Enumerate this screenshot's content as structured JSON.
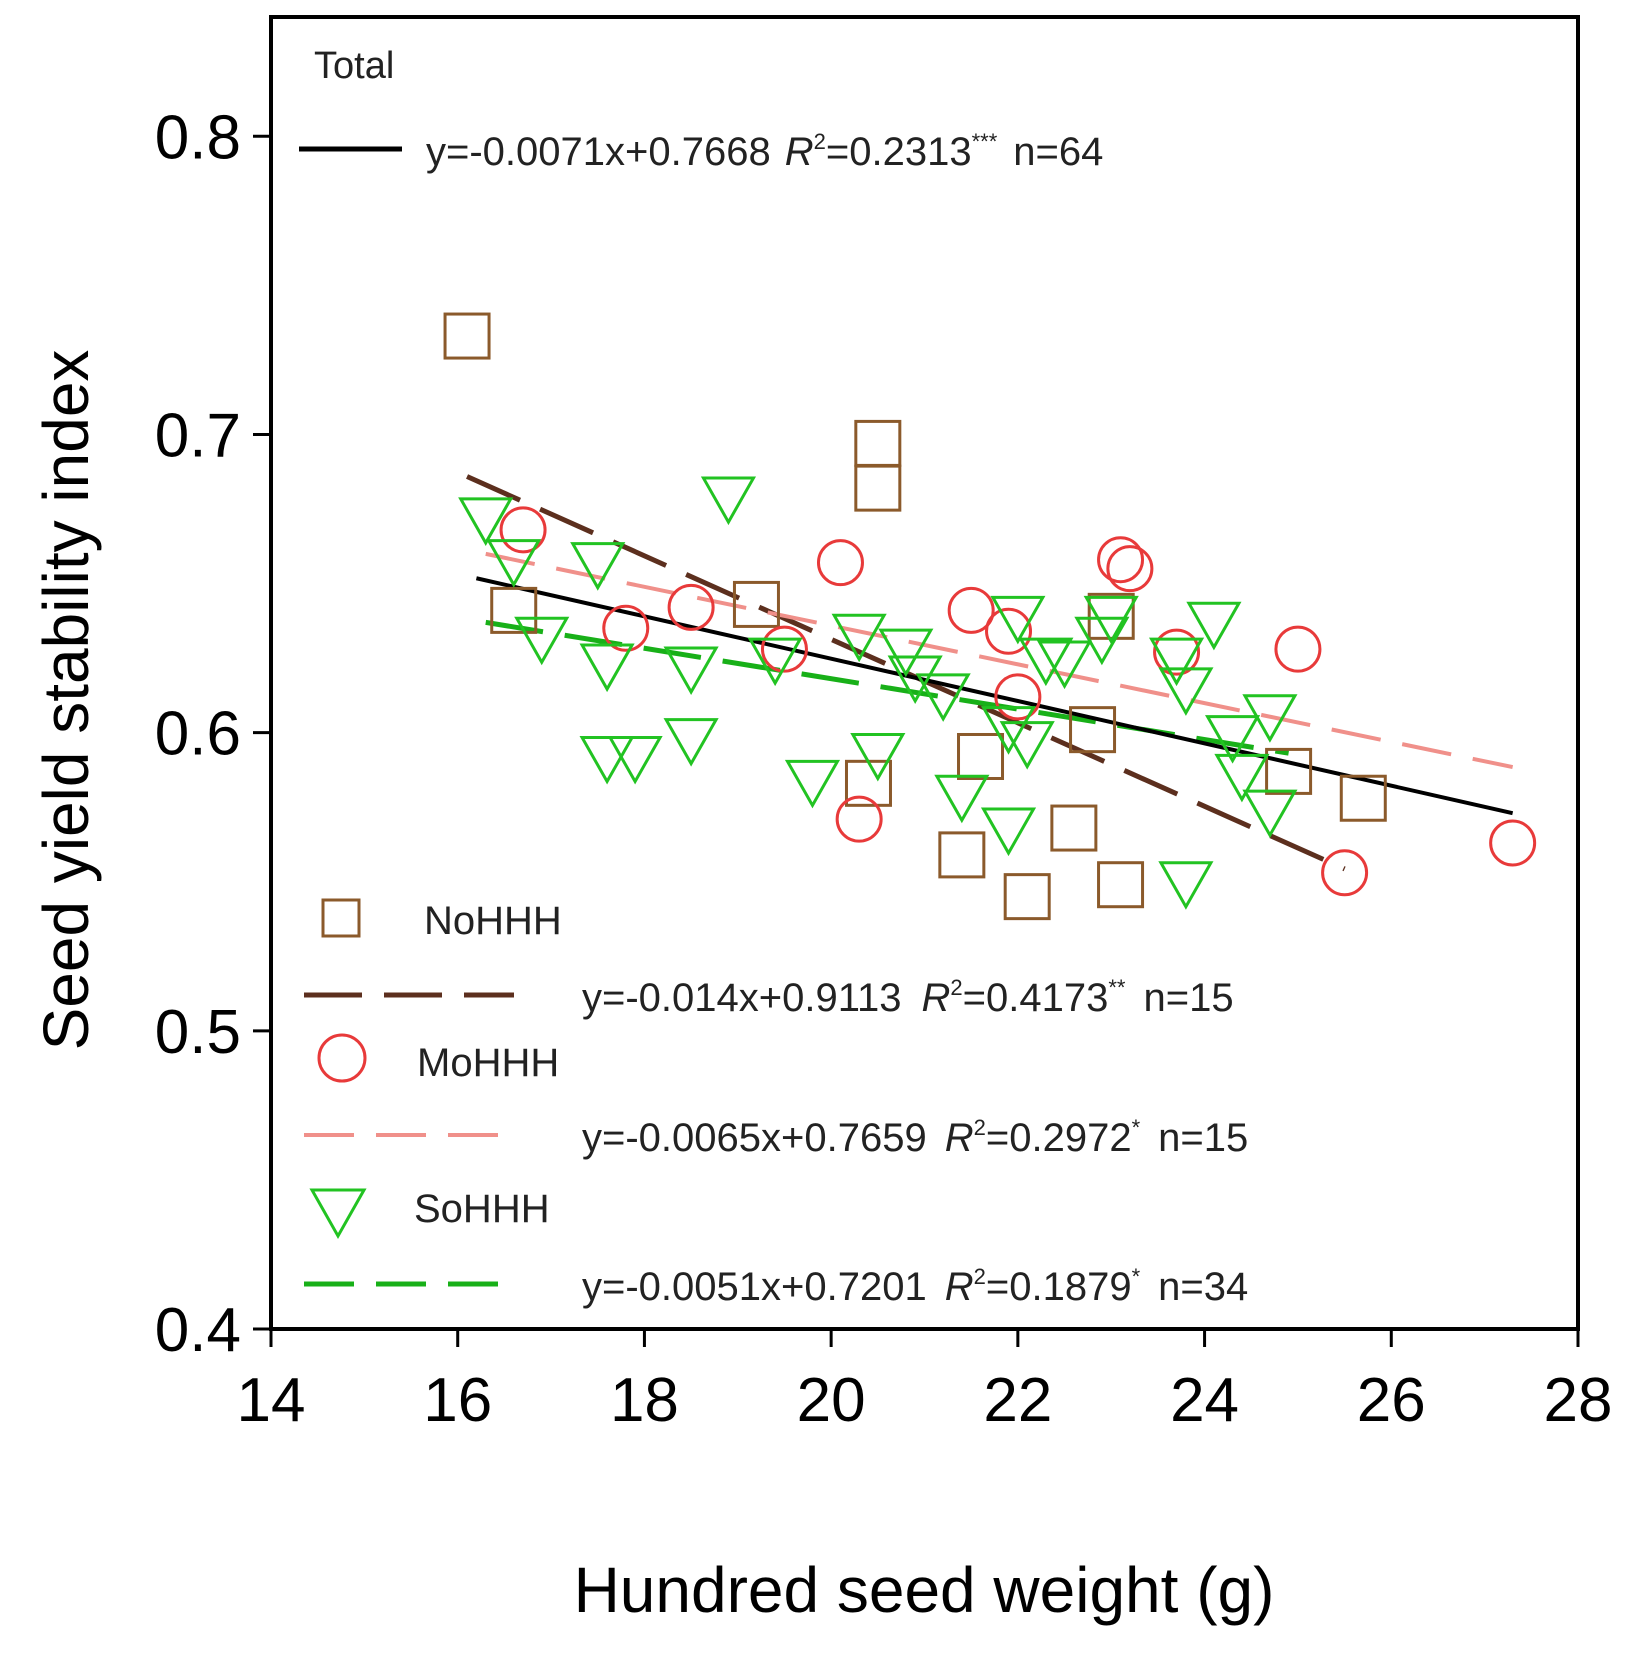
{
  "chart_data": {
    "type": "scatter",
    "xlabel": "Hundred seed weight (g)",
    "ylabel": "Seed yield stability index",
    "xlim": [
      14,
      28
    ],
    "ylim": [
      0.4,
      0.84
    ],
    "xticks": [
      "14",
      "16",
      "18",
      "20",
      "22",
      "24",
      "26",
      "28"
    ],
    "yticks": [
      "0.4",
      "0.5",
      "0.6",
      "0.7",
      "0.8"
    ],
    "total": {
      "label": "Total",
      "color": "#000000",
      "fit": {
        "slope": -0.0071,
        "intercept": 0.7668,
        "x_range": [
          16.2,
          27.3
        ]
      },
      "eq": "y=-0.0071x+0.7668",
      "r2_prefix": "R",
      "r2_value": "=0.2313",
      "sig": "***",
      "n": "n=64"
    },
    "series": [
      {
        "name": "NoHHH",
        "marker": "square",
        "color": "#8b5a2b",
        "line_color": "#5c2f1e",
        "dash": "long",
        "eq": "y=-0.014x+0.9113",
        "r2_prefix": "R",
        "r2_value": "=0.4173",
        "sig": "**",
        "n": "n=15",
        "fit": {
          "slope": -0.014,
          "intercept": 0.9113,
          "x_range": [
            16.1,
            25.5
          ]
        },
        "points": [
          [
            16.1,
            0.733
          ],
          [
            16.6,
            0.641
          ],
          [
            19.2,
            0.643
          ],
          [
            20.4,
            0.583
          ],
          [
            20.5,
            0.697
          ],
          [
            20.5,
            0.682
          ],
          [
            21.4,
            0.559
          ],
          [
            21.6,
            0.592
          ],
          [
            22.1,
            0.545
          ],
          [
            22.6,
            0.568
          ],
          [
            22.8,
            0.601
          ],
          [
            23.0,
            0.639
          ],
          [
            23.1,
            0.549
          ],
          [
            24.9,
            0.587
          ],
          [
            25.7,
            0.578
          ]
        ]
      },
      {
        "name": "MoHHH",
        "marker": "circle",
        "color": "#e83a3a",
        "line_color": "#f0908a",
        "dash": "short",
        "eq": "y=-0.0065x+0.7659",
        "r2_prefix": "R",
        "r2_value": "=0.2972",
        "sig": "*",
        "n": "n=15",
        "fit": {
          "slope": -0.0065,
          "intercept": 0.7659,
          "x_range": [
            16.3,
            27.3
          ]
        },
        "points": [
          [
            16.7,
            0.668
          ],
          [
            17.8,
            0.635
          ],
          [
            18.5,
            0.642
          ],
          [
            19.5,
            0.628
          ],
          [
            20.1,
            0.657
          ],
          [
            20.3,
            0.571
          ],
          [
            21.5,
            0.641
          ],
          [
            21.9,
            0.634
          ],
          [
            22.0,
            0.612
          ],
          [
            23.1,
            0.658
          ],
          [
            23.2,
            0.655
          ],
          [
            23.7,
            0.627
          ],
          [
            25.0,
            0.628
          ],
          [
            25.5,
            0.553
          ],
          [
            27.3,
            0.563
          ]
        ]
      },
      {
        "name": "SoHHH",
        "marker": "triangle-down",
        "color": "#22c322",
        "line_color": "#18b018",
        "dash": "long",
        "eq": "y=-0.0051x+0.7201",
        "r2_prefix": "R",
        "r2_value": "=0.1879",
        "sig": "*",
        "n": "n=34",
        "fit": {
          "slope": -0.0051,
          "intercept": 0.7201,
          "x_range": [
            16.3,
            24.9
          ]
        },
        "points": [
          [
            16.3,
            0.671
          ],
          [
            16.6,
            0.657
          ],
          [
            16.9,
            0.631
          ],
          [
            17.5,
            0.656
          ],
          [
            17.6,
            0.622
          ],
          [
            17.6,
            0.591
          ],
          [
            17.9,
            0.591
          ],
          [
            18.5,
            0.621
          ],
          [
            18.5,
            0.597
          ],
          [
            18.9,
            0.678
          ],
          [
            19.4,
            0.624
          ],
          [
            19.8,
            0.583
          ],
          [
            20.3,
            0.632
          ],
          [
            20.5,
            0.592
          ],
          [
            20.8,
            0.627
          ],
          [
            20.9,
            0.618
          ],
          [
            21.2,
            0.612
          ],
          [
            21.4,
            0.578
          ],
          [
            21.9,
            0.601
          ],
          [
            21.9,
            0.567
          ],
          [
            22.0,
            0.638
          ],
          [
            22.1,
            0.596
          ],
          [
            22.3,
            0.624
          ],
          [
            22.5,
            0.623
          ],
          [
            22.9,
            0.631
          ],
          [
            23.0,
            0.638
          ],
          [
            23.7,
            0.624
          ],
          [
            23.8,
            0.614
          ],
          [
            23.8,
            0.549
          ],
          [
            24.1,
            0.636
          ],
          [
            24.3,
            0.598
          ],
          [
            24.4,
            0.585
          ],
          [
            24.7,
            0.605
          ],
          [
            24.7,
            0.573
          ]
        ]
      }
    ]
  }
}
